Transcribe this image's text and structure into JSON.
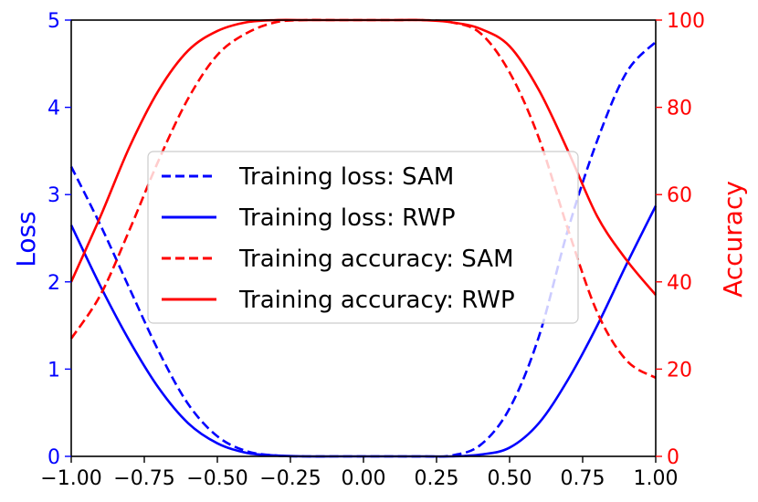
{
  "chart_data": {
    "type": "line",
    "xlim": [
      -1.0,
      1.0
    ],
    "x_ticks": [
      -1.0,
      -0.75,
      -0.5,
      -0.25,
      0.0,
      0.25,
      0.5,
      0.75,
      1.0
    ],
    "x_tick_labels": [
      "−1.00",
      "−0.75",
      "−0.50",
      "−0.25",
      "0.00",
      "0.25",
      "0.50",
      "0.75",
      "1.00"
    ],
    "y_left": {
      "label": "Loss",
      "color": "#0000ff",
      "lim": [
        0,
        5
      ],
      "ticks": [
        0,
        1,
        2,
        3,
        4,
        5
      ],
      "tick_labels": [
        "0",
        "1",
        "2",
        "3",
        "4",
        "5"
      ]
    },
    "y_right": {
      "label": "Accuracy",
      "color": "#ff0000",
      "lim": [
        0,
        100
      ],
      "ticks": [
        0,
        20,
        40,
        60,
        80,
        100
      ],
      "tick_labels": [
        "0",
        "20",
        "40",
        "60",
        "80",
        "100"
      ]
    },
    "x": [
      -1.0,
      -0.9,
      -0.8,
      -0.7,
      -0.6,
      -0.5,
      -0.4,
      -0.3,
      -0.2,
      -0.1,
      0.0,
      0.1,
      0.2,
      0.3,
      0.4,
      0.5,
      0.6,
      0.7,
      0.8,
      0.9,
      1.0
    ],
    "series": [
      {
        "name": "Training loss: SAM",
        "axis": "left",
        "color": "#0000ff",
        "dash": "dashed",
        "values": [
          3.32,
          2.65,
          1.92,
          1.2,
          0.6,
          0.23,
          0.06,
          0.01,
          0.0,
          0.0,
          0.0,
          0.0,
          0.0,
          0.01,
          0.13,
          0.55,
          1.37,
          2.6,
          3.62,
          4.4,
          4.75
        ]
      },
      {
        "name": "Training loss: RWP",
        "axis": "left",
        "color": "#0000ff",
        "dash": "solid",
        "values": [
          2.65,
          1.95,
          1.32,
          0.78,
          0.38,
          0.15,
          0.04,
          0.01,
          0.0,
          0.0,
          0.0,
          0.0,
          0.0,
          0.0,
          0.02,
          0.1,
          0.38,
          0.88,
          1.5,
          2.2,
          2.87
        ]
      },
      {
        "name": "Training accuracy: SAM",
        "axis": "right",
        "color": "#ff0000",
        "dash": "dashed",
        "values": [
          27,
          37,
          52,
          68,
          82,
          92,
          97,
          99.5,
          100,
          100,
          100,
          100,
          100,
          99.5,
          97,
          88,
          73,
          52,
          33,
          22,
          18
        ]
      },
      {
        "name": "Training accuracy: RWP",
        "axis": "right",
        "color": "#ff0000",
        "dash": "solid",
        "values": [
          40,
          55,
          71,
          84,
          93,
          97.5,
          99.5,
          100,
          100,
          100,
          100,
          100,
          100,
          99.5,
          98,
          94,
          84,
          70,
          55,
          45,
          37
        ]
      }
    ],
    "legend": {
      "placement": "center"
    }
  }
}
